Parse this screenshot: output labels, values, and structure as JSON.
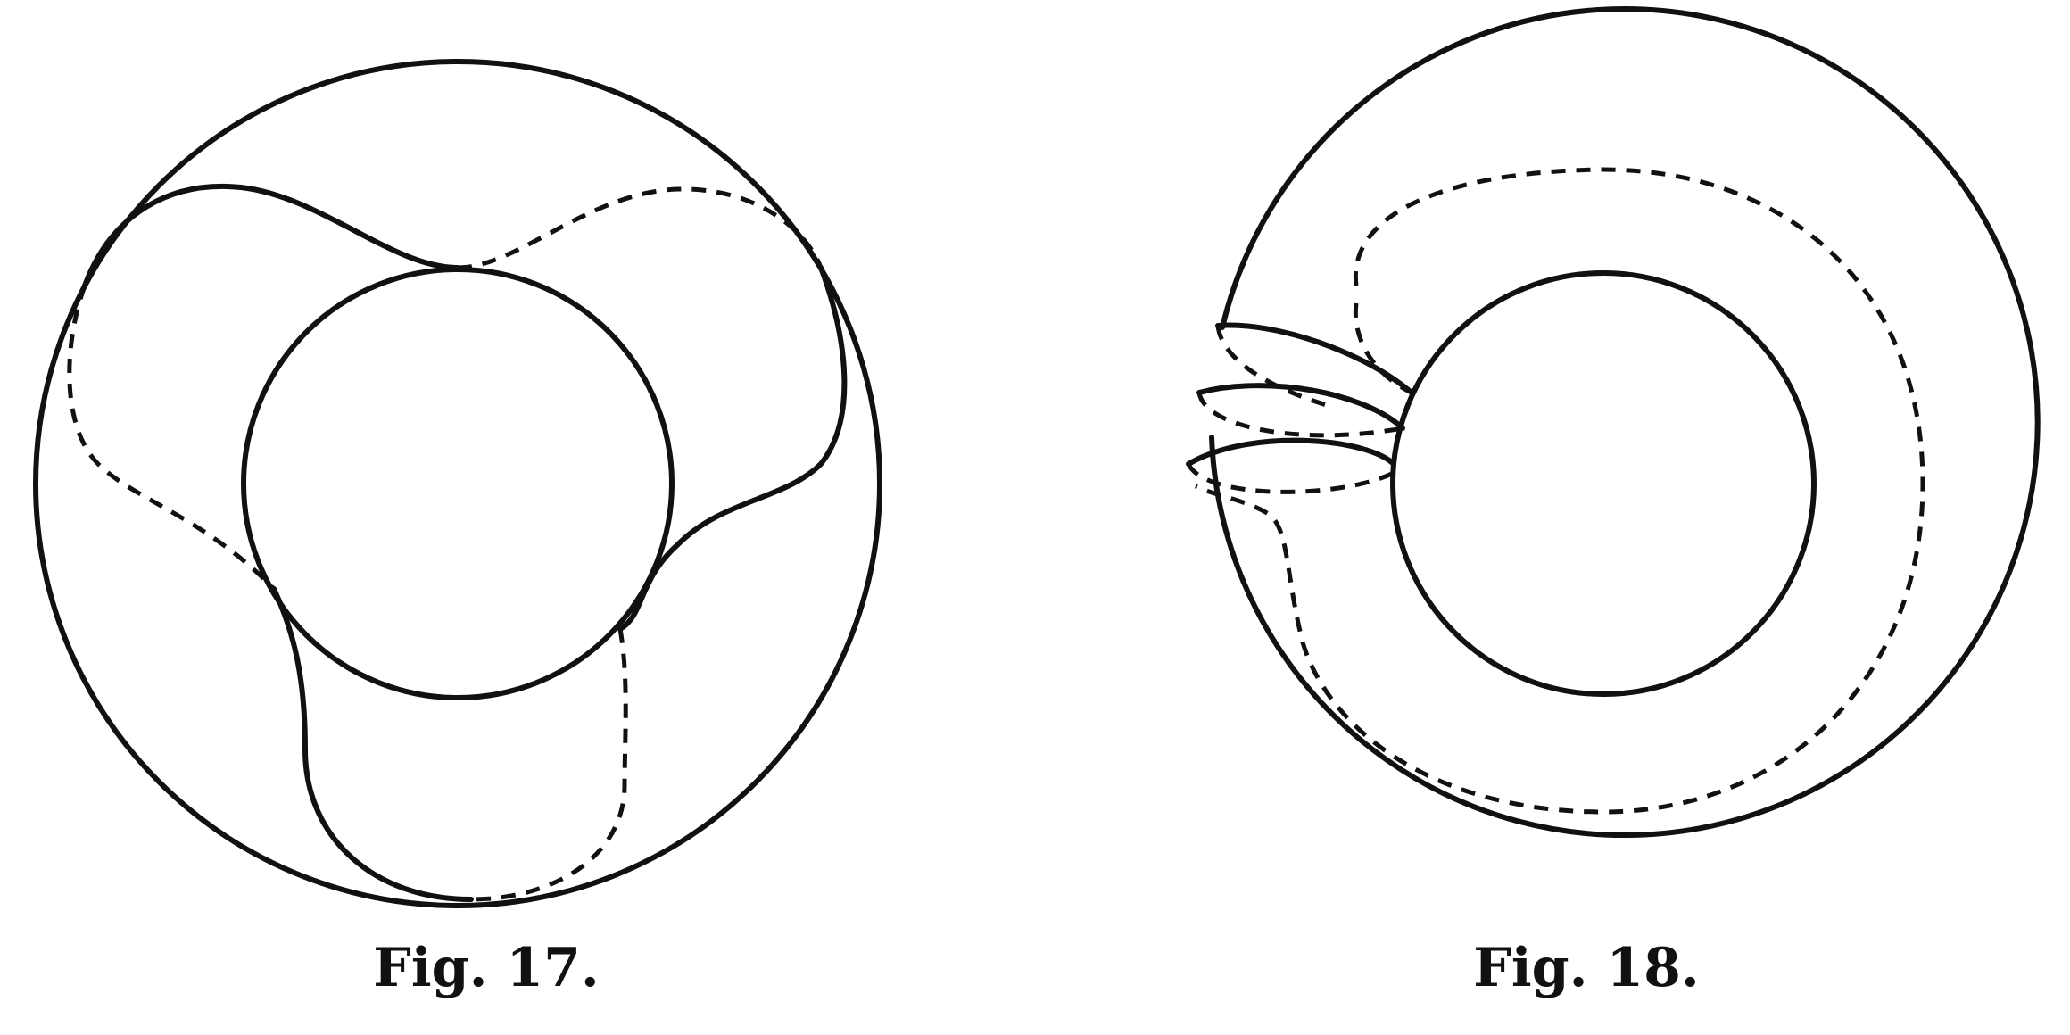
{
  "figures": [
    {
      "caption": "Fig. 17."
    },
    {
      "caption": "Fig. 18."
    }
  ],
  "colors": {
    "ink": "#111111",
    "paper": "#ffffff"
  }
}
